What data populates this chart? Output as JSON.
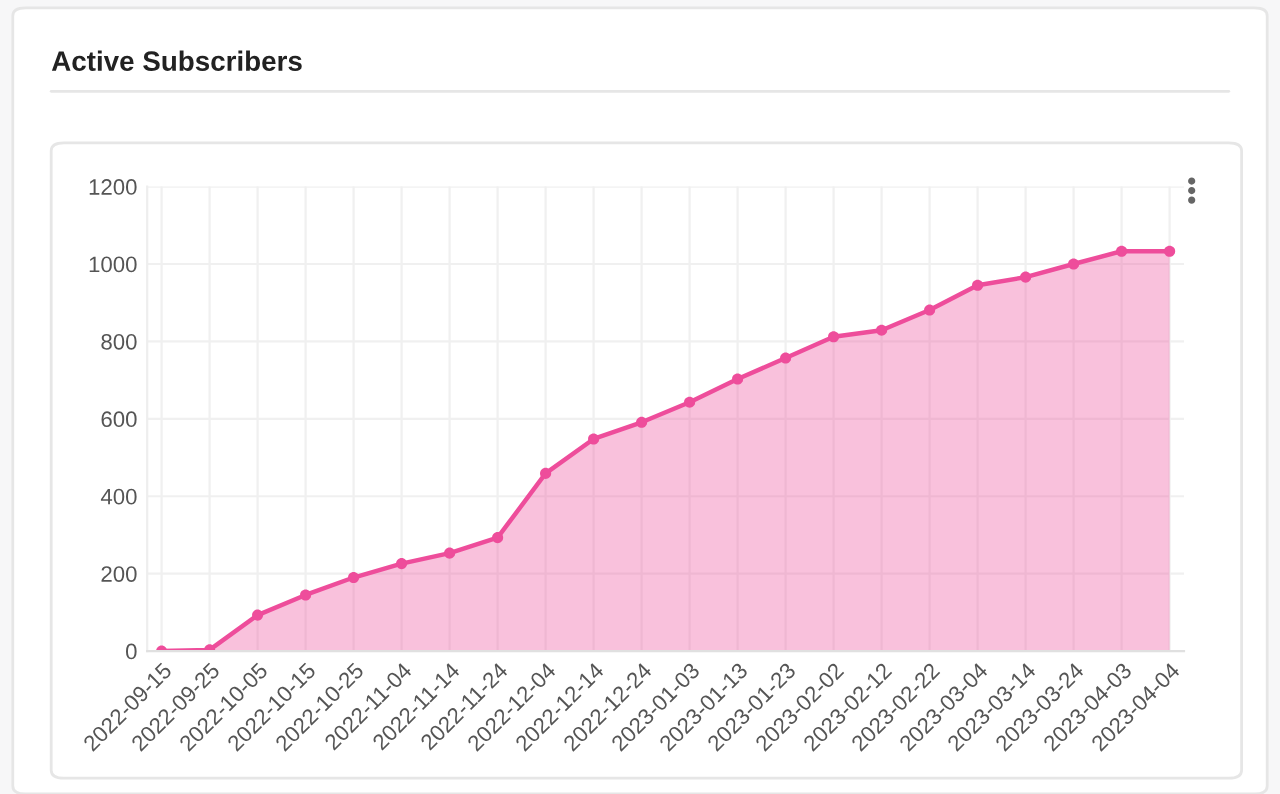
{
  "chart_data": {
    "type": "area",
    "title": "Active Subscribers",
    "categories": [
      "2022-09-15",
      "2022-09-25",
      "2022-10-05",
      "2022-10-15",
      "2022-10-25",
      "2022-11-04",
      "2022-11-14",
      "2022-11-24",
      "2022-12-04",
      "2022-12-14",
      "2022-12-24",
      "2023-01-03",
      "2023-01-13",
      "2023-01-23",
      "2023-02-02",
      "2023-02-12",
      "2023-02-22",
      "2023-03-04",
      "2023-03-14",
      "2023-03-24",
      "2023-04-03",
      "2023-04-04"
    ],
    "series": [
      {
        "color": "#ee4d9b",
        "values": [
          0,
          3,
          93,
          145,
          190,
          226,
          253,
          293,
          459,
          548,
          591,
          643,
          703,
          757,
          812,
          829,
          881,
          945,
          966,
          1000,
          1033,
          1033
        ]
      }
    ],
    "ylim": [
      0,
      1200
    ],
    "yticks": [
      0,
      200,
      400,
      600,
      800,
      1000,
      1200
    ],
    "grid": true,
    "marker": "circle",
    "line_style": "solid"
  }
}
